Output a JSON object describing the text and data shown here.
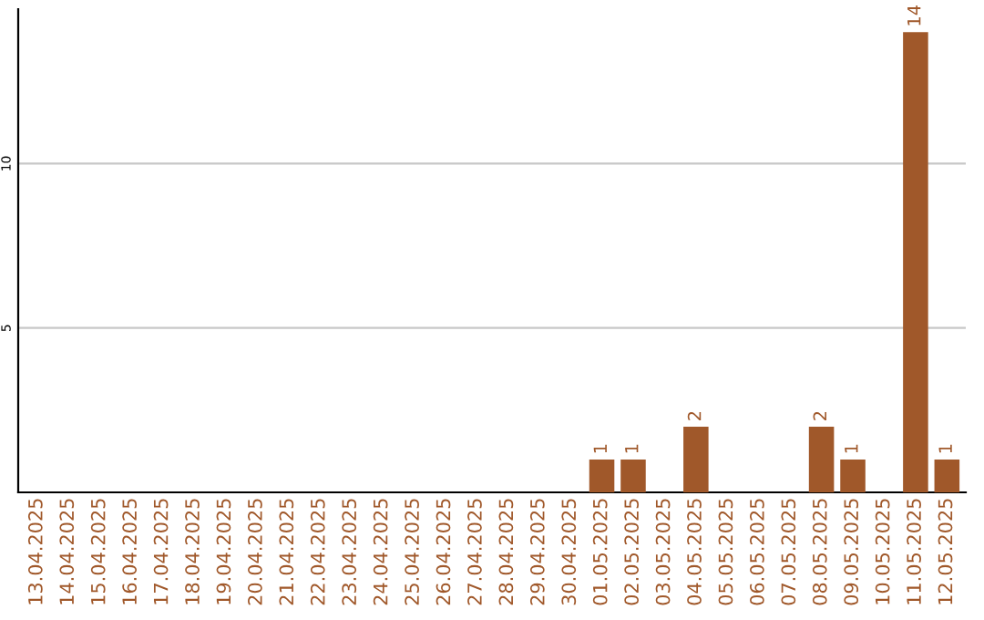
{
  "chart_data": {
    "type": "bar",
    "categories": [
      "13.04.2025",
      "14.04.2025",
      "15.04.2025",
      "16.04.2025",
      "17.04.2025",
      "18.04.2025",
      "19.04.2025",
      "20.04.2025",
      "21.04.2025",
      "22.04.2025",
      "23.04.2025",
      "24.04.2025",
      "25.04.2025",
      "26.04.2025",
      "27.04.2025",
      "28.04.2025",
      "29.04.2025",
      "30.04.2025",
      "01.05.2025",
      "02.05.2025",
      "03.05.2025",
      "04.05.2025",
      "05.05.2025",
      "06.05.2025",
      "07.05.2025",
      "08.05.2025",
      "09.05.2025",
      "10.05.2025",
      "11.05.2025",
      "12.05.2025"
    ],
    "values": [
      0,
      0,
      0,
      0,
      0,
      0,
      0,
      0,
      0,
      0,
      0,
      0,
      0,
      0,
      0,
      0,
      0,
      0,
      1,
      1,
      0,
      2,
      0,
      0,
      0,
      2,
      1,
      0,
      14,
      1
    ],
    "value_labels": [
      null,
      null,
      null,
      null,
      null,
      null,
      null,
      null,
      null,
      null,
      null,
      null,
      null,
      null,
      null,
      null,
      null,
      null,
      "1",
      "1",
      null,
      "2",
      null,
      null,
      null,
      "2",
      "1",
      null,
      "14",
      "1"
    ],
    "color": "#a0582a",
    "ylim": [
      0,
      14.7
    ],
    "yticks": [
      5,
      10
    ],
    "grid": "y",
    "legend": false
  }
}
